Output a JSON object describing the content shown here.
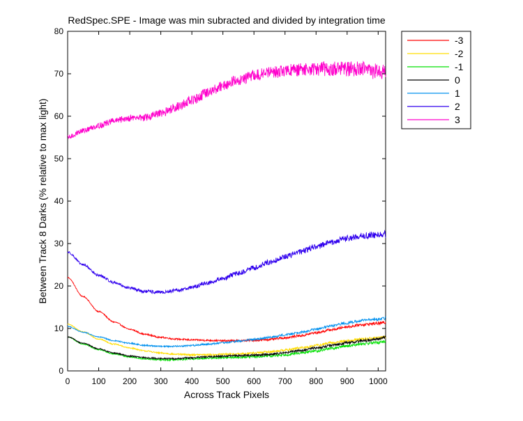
{
  "chart_data": {
    "type": "line",
    "title": "RedSpec.SPE - Image was min subracted and divided by integration time",
    "xlabel": "Across Track Pixels",
    "ylabel": "Between Track 8 Darks (% relative to max light)",
    "xlim": [
      0,
      1024
    ],
    "ylim": [
      0,
      80
    ],
    "xticks": [
      0,
      100,
      200,
      300,
      400,
      500,
      600,
      700,
      800,
      900,
      1000
    ],
    "yticks": [
      0,
      10,
      20,
      30,
      40,
      50,
      60,
      70,
      80
    ],
    "grid": false,
    "legend_position": "outside-top-right",
    "series": [
      {
        "name": "-3",
        "color": "#ff0000",
        "x": [
          0,
          50,
          100,
          150,
          200,
          250,
          300,
          350,
          400,
          450,
          500,
          550,
          600,
          650,
          700,
          750,
          800,
          850,
          900,
          950,
          1000,
          1024
        ],
        "y": [
          22,
          17.5,
          14,
          11.5,
          9.8,
          8.6,
          7.9,
          7.5,
          7.3,
          7.2,
          7.1,
          7.1,
          7.2,
          7.4,
          7.8,
          8.3,
          9.0,
          9.7,
          10.4,
          10.9,
          11.2,
          11.4
        ]
      },
      {
        "name": "-2",
        "color": "#ffdd00",
        "x": [
          0,
          50,
          100,
          150,
          200,
          250,
          300,
          350,
          400,
          450,
          500,
          550,
          600,
          650,
          700,
          750,
          800,
          850,
          900,
          950,
          1000,
          1024
        ],
        "y": [
          11,
          9.2,
          7.5,
          6.3,
          5.4,
          4.7,
          4.2,
          3.9,
          3.8,
          3.8,
          3.9,
          4.0,
          4.2,
          4.5,
          4.9,
          5.4,
          6.0,
          6.6,
          7.1,
          7.5,
          7.8,
          8.0
        ]
      },
      {
        "name": "-1",
        "color": "#00e000",
        "x": [
          0,
          50,
          100,
          150,
          200,
          250,
          300,
          350,
          400,
          450,
          500,
          550,
          600,
          650,
          700,
          750,
          800,
          850,
          900,
          950,
          1000,
          1024
        ],
        "y": [
          8,
          6.3,
          5.0,
          4.0,
          3.3,
          2.8,
          2.6,
          2.6,
          2.8,
          3.0,
          3.1,
          3.2,
          3.3,
          3.5,
          3.8,
          4.2,
          4.7,
          5.3,
          5.9,
          6.4,
          6.7,
          6.9
        ]
      },
      {
        "name": "0",
        "color": "#000000",
        "x": [
          0,
          50,
          100,
          150,
          200,
          250,
          300,
          350,
          400,
          450,
          500,
          550,
          600,
          650,
          700,
          750,
          800,
          850,
          900,
          950,
          1000,
          1024
        ],
        "y": [
          8,
          6.5,
          5.2,
          4.2,
          3.5,
          3.1,
          2.9,
          2.9,
          3.1,
          3.3,
          3.5,
          3.6,
          3.7,
          3.9,
          4.3,
          4.8,
          5.4,
          6.0,
          6.6,
          7.1,
          7.5,
          8.0
        ]
      },
      {
        "name": "1",
        "color": "#0090ee",
        "x": [
          0,
          50,
          100,
          150,
          200,
          250,
          300,
          350,
          400,
          450,
          500,
          550,
          600,
          650,
          700,
          750,
          800,
          850,
          900,
          950,
          1000,
          1024
        ],
        "y": [
          10.5,
          9.1,
          8.0,
          7.1,
          6.5,
          6.0,
          5.8,
          5.8,
          6.0,
          6.3,
          6.6,
          7.0,
          7.4,
          7.9,
          8.5,
          9.1,
          9.8,
          10.6,
          11.3,
          11.9,
          12.2,
          12.4
        ]
      },
      {
        "name": "2",
        "color": "#3000ee",
        "x": [
          0,
          50,
          100,
          150,
          200,
          250,
          300,
          350,
          400,
          450,
          500,
          550,
          600,
          650,
          700,
          750,
          800,
          850,
          900,
          950,
          1000,
          1024
        ],
        "y": [
          28,
          25.0,
          22.5,
          20.8,
          19.5,
          18.7,
          18.5,
          18.9,
          19.7,
          20.7,
          21.8,
          23.0,
          24.3,
          25.6,
          26.9,
          28.1,
          29.3,
          30.3,
          31.2,
          31.8,
          32.1,
          32.2
        ]
      },
      {
        "name": "3",
        "color": "#ff00cc",
        "x": [
          0,
          50,
          100,
          150,
          200,
          250,
          300,
          350,
          400,
          450,
          500,
          550,
          600,
          650,
          700,
          750,
          800,
          850,
          900,
          950,
          1000,
          1024
        ],
        "y": [
          55,
          56.6,
          57.8,
          58.9,
          59.6,
          59.7,
          60.6,
          62.2,
          63.7,
          65.5,
          67.2,
          68.6,
          69.6,
          70.3,
          70.7,
          70.9,
          71.1,
          71.2,
          71.1,
          71.0,
          70.5,
          70.2
        ]
      }
    ]
  }
}
